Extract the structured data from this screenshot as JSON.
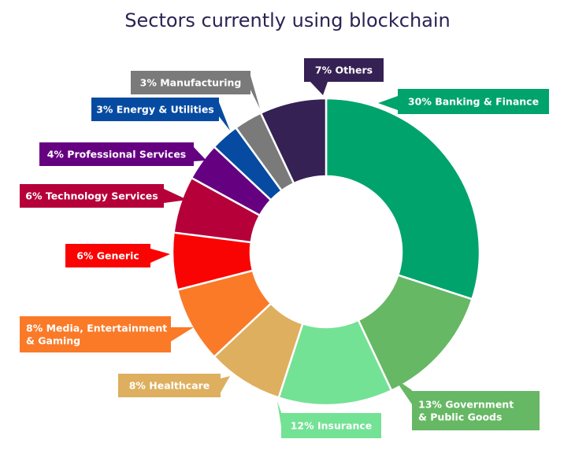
{
  "chart_data": {
    "type": "pie",
    "title": "Sectors currently using blockchain",
    "donut": true,
    "categories": [
      "Banking & Finance",
      "Government & Public Goods",
      "Insurance",
      "Healthcare",
      "Media, Entertainment & Gaming",
      "Generic",
      "Technology Services",
      "Professional Services",
      "Energy & Utilities",
      "Manufacturing",
      "Others"
    ],
    "values": [
      30,
      13,
      12,
      8,
      8,
      6,
      6,
      4,
      3,
      3,
      7
    ],
    "unit": "%",
    "labels": [
      [
        "30% Banking & Finance"
      ],
      [
        "13% Government",
        "& Public Goods"
      ],
      [
        "12% Insurance"
      ],
      [
        "8% Healthcare"
      ],
      [
        "8% Media, Entertainment",
        "& Gaming"
      ],
      [
        "6% Generic"
      ],
      [
        "6% Technology Services"
      ],
      [
        "4% Professional Services"
      ],
      [
        "3% Energy & Utilities"
      ],
      [
        "3% Manufacturing"
      ],
      [
        "7% Others"
      ]
    ],
    "colors": [
      "#00a36c",
      "#66b864",
      "#73e294",
      "#deaf5f",
      "#fa7a28",
      "#fa0303",
      "#b50039",
      "#650081",
      "#064ba1",
      "#7a7a7a",
      "#352153"
    ],
    "label_text_color": "#ffffff",
    "title_color": "#2b2252",
    "legend": "none (callout labels)"
  }
}
